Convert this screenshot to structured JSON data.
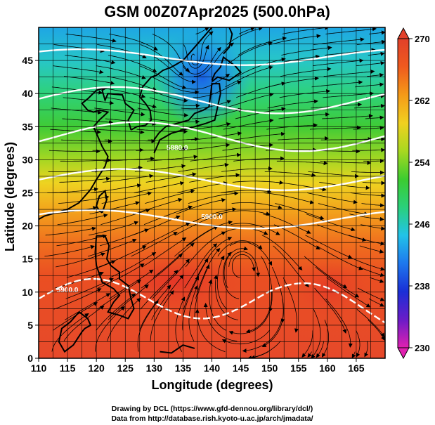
{
  "chart_data": {
    "type": "heatmap",
    "title": "GSM 00Z07Apr2025 (500.0hPa)",
    "xlabel": "Longitude (degrees)",
    "ylabel": "Latitude  (degrees)",
    "xlim": [
      110,
      170
    ],
    "ylim": [
      0,
      50
    ],
    "x_ticks": [
      "110",
      "115",
      "120",
      "125",
      "130",
      "135",
      "140",
      "145",
      "150",
      "155",
      "160",
      "165"
    ],
    "y_ticks": [
      "0",
      "5",
      "10",
      "15",
      "20",
      "25",
      "30",
      "35",
      "40",
      "45"
    ],
    "grid": true,
    "colorbar": {
      "min": 230,
      "max": 270,
      "ticks": [
        "230",
        "238",
        "246",
        "254",
        "262",
        "270"
      ],
      "colors": [
        "#e020b0",
        "#6a1cc8",
        "#1a2fd6",
        "#1e78ee",
        "#22c3e8",
        "#2ad07a",
        "#3ccc30",
        "#a8d820",
        "#f0d020",
        "#f59a18",
        "#ef5a1e",
        "#e2402a"
      ]
    },
    "contours": [
      {
        "label": "5900.0",
        "lat": 21.0
      },
      {
        "label": "5900.0",
        "lat": 10.0
      },
      {
        "label": "5880.0",
        "lat": 31.5
      }
    ],
    "credits": [
      "Drawing by DCL (https://www.gfd-dennou.org/library/dcl/)",
      "Data from http://database.rish.kyoto-u.ac.jp/arch/jmadata/"
    ]
  }
}
